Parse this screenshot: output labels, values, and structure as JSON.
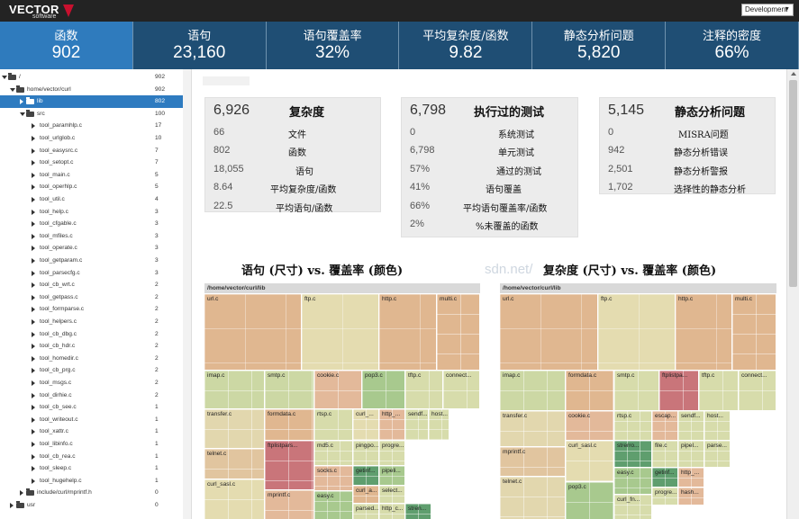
{
  "app": {
    "logo_main": "VECTOR",
    "logo_sub": "software",
    "environment": "Development"
  },
  "metrics": [
    {
      "label": "函数",
      "value": "902"
    },
    {
      "label": "语句",
      "value": "23,160"
    },
    {
      "label": "语句覆盖率",
      "value": "32%"
    },
    {
      "label": "平均复杂度/函数",
      "value": "9.82"
    },
    {
      "label": "静态分析问题",
      "value": "5,820"
    },
    {
      "label": "注释的密度",
      "value": "66%"
    }
  ],
  "tree": [
    {
      "name": "/",
      "count": "902",
      "level": 0,
      "type": "folder-open"
    },
    {
      "name": "home/vector/curl",
      "count": "902",
      "level": 1,
      "type": "folder-open"
    },
    {
      "name": "lib",
      "count": "802",
      "level": 2,
      "type": "folder",
      "selected": true
    },
    {
      "name": "src",
      "count": "100",
      "level": 2,
      "type": "folder-open"
    },
    {
      "name": "tool_paramhlp.c",
      "count": "17",
      "level": 3,
      "type": "file"
    },
    {
      "name": "tool_urlglob.c",
      "count": "10",
      "level": 3,
      "type": "file"
    },
    {
      "name": "tool_easysrc.c",
      "count": "7",
      "level": 3,
      "type": "file"
    },
    {
      "name": "tool_setopt.c",
      "count": "7",
      "level": 3,
      "type": "file"
    },
    {
      "name": "tool_main.c",
      "count": "5",
      "level": 3,
      "type": "file"
    },
    {
      "name": "tool_operhlp.c",
      "count": "5",
      "level": 3,
      "type": "file"
    },
    {
      "name": "tool_util.c",
      "count": "4",
      "level": 3,
      "type": "file"
    },
    {
      "name": "tool_help.c",
      "count": "3",
      "level": 3,
      "type": "file"
    },
    {
      "name": "tool_cfgable.c",
      "count": "3",
      "level": 3,
      "type": "file"
    },
    {
      "name": "tool_mfiles.c",
      "count": "3",
      "level": 3,
      "type": "file"
    },
    {
      "name": "tool_operate.c",
      "count": "3",
      "level": 3,
      "type": "file"
    },
    {
      "name": "tool_getparam.c",
      "count": "3",
      "level": 3,
      "type": "file"
    },
    {
      "name": "tool_parsecfg.c",
      "count": "3",
      "level": 3,
      "type": "file"
    },
    {
      "name": "tool_cb_wrt.c",
      "count": "2",
      "level": 3,
      "type": "file"
    },
    {
      "name": "tool_getpass.c",
      "count": "2",
      "level": 3,
      "type": "file"
    },
    {
      "name": "tool_formparse.c",
      "count": "2",
      "level": 3,
      "type": "file"
    },
    {
      "name": "tool_helpers.c",
      "count": "2",
      "level": 3,
      "type": "file"
    },
    {
      "name": "tool_cb_dbg.c",
      "count": "2",
      "level": 3,
      "type": "file"
    },
    {
      "name": "tool_cb_hdr.c",
      "count": "2",
      "level": 3,
      "type": "file"
    },
    {
      "name": "tool_homedir.c",
      "count": "2",
      "level": 3,
      "type": "file"
    },
    {
      "name": "tool_cb_prg.c",
      "count": "2",
      "level": 3,
      "type": "file"
    },
    {
      "name": "tool_msgs.c",
      "count": "2",
      "level": 3,
      "type": "file"
    },
    {
      "name": "tool_dirhie.c",
      "count": "2",
      "level": 3,
      "type": "file"
    },
    {
      "name": "tool_cb_see.c",
      "count": "1",
      "level": 3,
      "type": "file"
    },
    {
      "name": "tool_writeout.c",
      "count": "1",
      "level": 3,
      "type": "file"
    },
    {
      "name": "tool_xattr.c",
      "count": "1",
      "level": 3,
      "type": "file"
    },
    {
      "name": "tool_libinfo.c",
      "count": "1",
      "level": 3,
      "type": "file"
    },
    {
      "name": "tool_cb_rea.c",
      "count": "1",
      "level": 3,
      "type": "file"
    },
    {
      "name": "tool_sleep.c",
      "count": "1",
      "level": 3,
      "type": "file"
    },
    {
      "name": "tool_hugehelp.c",
      "count": "1",
      "level": 3,
      "type": "file"
    },
    {
      "name": "include/curl/mprintf.h",
      "count": "0",
      "level": 2,
      "type": "folder"
    },
    {
      "name": "usr",
      "count": "0",
      "level": 1,
      "type": "folder"
    }
  ],
  "cards": [
    {
      "big": "6,926",
      "title": "复杂度",
      "rows": [
        {
          "n": "66",
          "l": "文件"
        },
        {
          "n": "802",
          "l": "函数"
        },
        {
          "n": "18,055",
          "l": "语句"
        },
        {
          "n": "8.64",
          "l": "平均复杂度/函数"
        },
        {
          "n": "22.5",
          "l": "平均语句/函数"
        }
      ]
    },
    {
      "big": "6,798",
      "title": "执行过的测试",
      "rows": [
        {
          "n": "0",
          "l": "系统测试"
        },
        {
          "n": "6,798",
          "l": "单元测试"
        },
        {
          "n": "57%",
          "l": "通过的测试"
        },
        {
          "n": "41%",
          "l": "语句覆盖"
        },
        {
          "n": "66%",
          "l": "平均语句覆盖率/函数"
        },
        {
          "n": "2%",
          "l": "%未覆盖的函数"
        }
      ]
    },
    {
      "big": "5,145",
      "title": "静态分析问题",
      "rows": [
        {
          "n": "0",
          "l": "MISRA问题"
        },
        {
          "n": "942",
          "l": "静态分析错误"
        },
        {
          "n": "2,501",
          "l": "静态分析警报"
        },
        {
          "n": "1,702",
          "l": "选择性的静态分析"
        }
      ]
    }
  ],
  "charts": [
    {
      "title": "语句 (尺寸) vs. 覆盖率 (颜色)",
      "path": "/home/vector/curl/lib",
      "tiles": [
        {
          "label": "url.c",
          "color": "#e0b790"
        },
        {
          "label": "ftp.c",
          "color": "#e4dcb0"
        },
        {
          "label": "http.c",
          "color": "#e0b790"
        },
        {
          "label": "multi.c",
          "color": "#e0b790"
        },
        {
          "label": "imap.c",
          "color": "#ccd8a4"
        },
        {
          "label": "smtp.c",
          "color": "#ccd8a4"
        },
        {
          "label": "cookie.c",
          "color": "#e3b99a"
        },
        {
          "label": "pop3.c",
          "color": "#a8c98e"
        },
        {
          "label": "tftp.c",
          "color": "#d7dcab"
        },
        {
          "label": "connect...",
          "color": "#d7dcab"
        },
        {
          "label": "transfer.c",
          "color": "#e2d7ae"
        },
        {
          "label": "formdata.c",
          "color": "#e0b790"
        },
        {
          "label": "rtsp.c",
          "color": "#d7dcab"
        },
        {
          "label": "curl_...",
          "color": "#e4dcb0"
        },
        {
          "label": "http_...",
          "color": "#e3b99a"
        },
        {
          "label": "sendf...",
          "color": "#d7dcab"
        },
        {
          "label": "host...",
          "color": "#d7dcab"
        },
        {
          "label": "telnet.c",
          "color": "#e1c59f"
        },
        {
          "label": "ftplistpars...",
          "color": "#c9757a"
        },
        {
          "label": "md5.c",
          "color": "#d7dcab"
        },
        {
          "label": "pingpo...",
          "color": "#d7dcab"
        },
        {
          "label": "progre...",
          "color": "#d7dcab"
        },
        {
          "label": "socks.c",
          "color": "#e3b99a"
        },
        {
          "label": "getinf...",
          "color": "#5f9e6e"
        },
        {
          "label": "pipeli...",
          "color": "#a8c98e"
        },
        {
          "label": "curl_sasl.c",
          "color": "#e4dcb0"
        },
        {
          "label": "mprintf.c",
          "color": "#e3b99a"
        },
        {
          "label": "easy.c",
          "color": "#a8c98e"
        },
        {
          "label": "curl_a...",
          "color": "#e0b790"
        },
        {
          "label": "select...",
          "color": "#d7dcab"
        },
        {
          "label": "http_c...",
          "color": "#d7dcab"
        },
        {
          "label": "parsed...",
          "color": "#d7dcab"
        },
        {
          "label": "stren...",
          "color": "#5f9e6e"
        }
      ]
    },
    {
      "title": "复杂度 (尺寸) vs. 覆盖率 (颜色)",
      "path": "/home/vector/curl/lib",
      "tiles": [
        {
          "label": "url.c",
          "color": "#e0b790"
        },
        {
          "label": "ftp.c",
          "color": "#e4dcb0"
        },
        {
          "label": "http.c",
          "color": "#e0b790"
        },
        {
          "label": "multi.c",
          "color": "#e0b790"
        },
        {
          "label": "imap.c",
          "color": "#ccd8a4"
        },
        {
          "label": "formdata.c",
          "color": "#e0b790"
        },
        {
          "label": "smtp.c",
          "color": "#d7dcab"
        },
        {
          "label": "ftplistpa...",
          "color": "#c9757a"
        },
        {
          "label": "tftp.c",
          "color": "#d7dcab"
        },
        {
          "label": "connect...",
          "color": "#d7dcab"
        },
        {
          "label": "transfer.c",
          "color": "#e2d7ae"
        },
        {
          "label": "cookie.c",
          "color": "#e3b99a"
        },
        {
          "label": "rtsp.c",
          "color": "#d7dcab"
        },
        {
          "label": "escap...",
          "color": "#e3b99a"
        },
        {
          "label": "sendf...",
          "color": "#d7dcab"
        },
        {
          "label": "host...",
          "color": "#d7dcab"
        },
        {
          "label": "mprintf.c",
          "color": "#e1c59f"
        },
        {
          "label": "curl_sasl.c",
          "color": "#e4dcb0"
        },
        {
          "label": "strerro...",
          "color": "#5f9e6e"
        },
        {
          "label": "file.c",
          "color": "#d7dcab"
        },
        {
          "label": "pipel...",
          "color": "#d7dcab"
        },
        {
          "label": "parse...",
          "color": "#d7dcab"
        },
        {
          "label": "easy.c",
          "color": "#a8c98e"
        },
        {
          "label": "getinf...",
          "color": "#5f9e6e"
        },
        {
          "label": "http_...",
          "color": "#e3b99a"
        },
        {
          "label": "telnet.c",
          "color": "#e2d7ae"
        },
        {
          "label": "pop3.c",
          "color": "#a8c98e"
        },
        {
          "label": "curl_fn...",
          "color": "#d7dcab"
        },
        {
          "label": "progre...",
          "color": "#d7dcab"
        },
        {
          "label": "hash...",
          "color": "#e3b99a"
        }
      ]
    }
  ]
}
